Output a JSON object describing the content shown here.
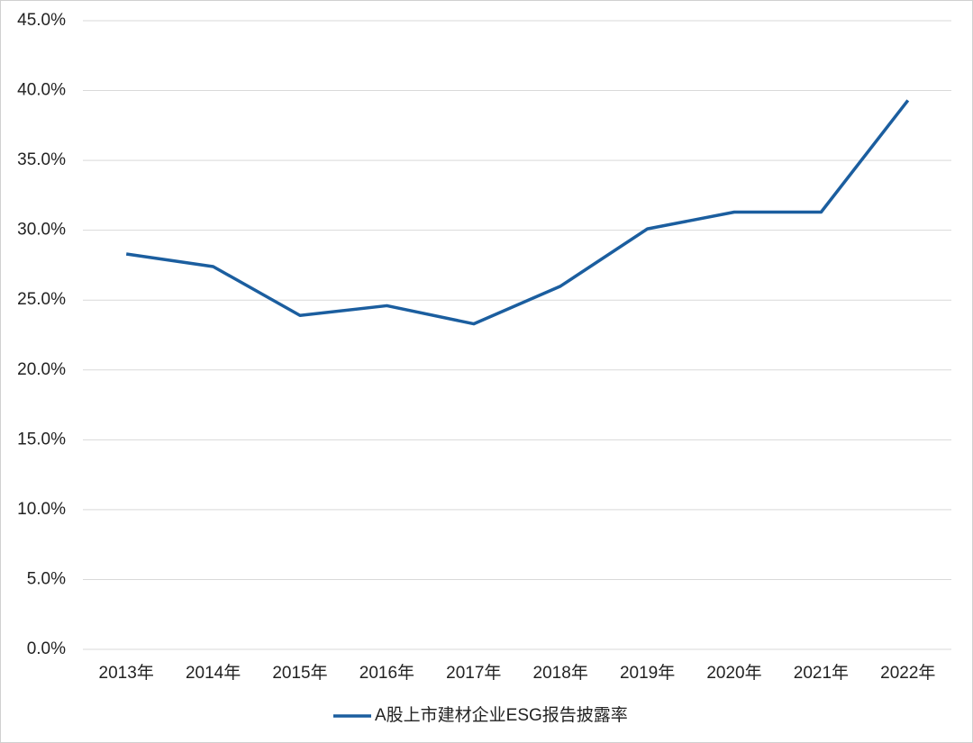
{
  "chart_data": {
    "type": "line",
    "categories": [
      "2013年",
      "2014年",
      "2015年",
      "2016年",
      "2017年",
      "2018年",
      "2019年",
      "2020年",
      "2021年",
      "2022年"
    ],
    "series": [
      {
        "name": "A股上市建材企业ESG报告披露率",
        "color": "#1b5e9f",
        "values": [
          28.3,
          27.4,
          23.9,
          24.6,
          23.3,
          26.0,
          30.1,
          31.3,
          31.3,
          39.3
        ]
      }
    ],
    "ylim": [
      0,
      45
    ],
    "yticks": [
      {
        "value": 0,
        "label": "0.0%"
      },
      {
        "value": 5,
        "label": "5.0%"
      },
      {
        "value": 10,
        "label": "10.0%"
      },
      {
        "value": 15,
        "label": "15.0%"
      },
      {
        "value": 20,
        "label": "20.0%"
      },
      {
        "value": 25,
        "label": "25.0%"
      },
      {
        "value": 30,
        "label": "30.0%"
      },
      {
        "value": 35,
        "label": "35.0%"
      },
      {
        "value": 40,
        "label": "40.0%"
      },
      {
        "value": 45,
        "label": "45.0%"
      }
    ],
    "grid": true,
    "legend": "bottom"
  }
}
